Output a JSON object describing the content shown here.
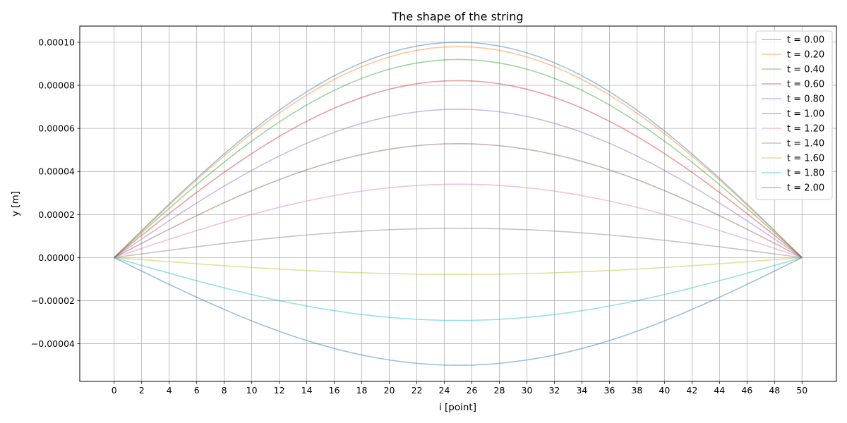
{
  "chart_data": {
    "type": "line",
    "title": "The shape of the string",
    "xlabel": "i [point]",
    "ylabel": "y [m]",
    "xlim": [
      -2.5,
      52.5
    ],
    "ylim": [
      -5.75e-05,
      0.0001075
    ],
    "xticks": [
      0,
      2,
      4,
      6,
      8,
      10,
      12,
      14,
      16,
      18,
      20,
      22,
      24,
      26,
      28,
      30,
      32,
      34,
      36,
      38,
      40,
      42,
      44,
      46,
      48,
      50
    ],
    "xtick_labels": [
      "0",
      "2",
      "4",
      "6",
      "8",
      "10",
      "12",
      "14",
      "16",
      "18",
      "20",
      "22",
      "24",
      "26",
      "28",
      "30",
      "32",
      "34",
      "36",
      "38",
      "40",
      "42",
      "44",
      "46",
      "48",
      "50"
    ],
    "yticks": [
      -4e-05,
      -2e-05,
      0,
      2e-05,
      4e-05,
      6e-05,
      8e-05,
      0.0001
    ],
    "ytick_labels": [
      "−0.00004",
      "−0.00002",
      "0.00000",
      "0.00002",
      "0.00004",
      "0.00006",
      "0.00008",
      "0.00010"
    ],
    "grid": true,
    "legend_position": "top-right",
    "shape": "sine half-wave over i = 0..50, peak at i = 25",
    "series": [
      {
        "name": "t = 0.00",
        "amplitude": 0.0001,
        "color": "#1f77b4"
      },
      {
        "name": "t = 0.20",
        "amplitude": 9.8e-05,
        "color": "#ff7f0e"
      },
      {
        "name": "t = 0.40",
        "amplitude": 9.2e-05,
        "color": "#2ca02c"
      },
      {
        "name": "t = 0.60",
        "amplitude": 8.22e-05,
        "color": "#d62728"
      },
      {
        "name": "t = 0.80",
        "amplitude": 6.89e-05,
        "color": "#9467bd"
      },
      {
        "name": "t = 1.00",
        "amplitude": 5.29e-05,
        "color": "#8c564b"
      },
      {
        "name": "t = 1.20",
        "amplitude": 3.41e-05,
        "color": "#e377c2"
      },
      {
        "name": "t = 1.40",
        "amplitude": 1.36e-05,
        "color": "#7f7f7f"
      },
      {
        "name": "t = 1.60",
        "amplitude": -7.8e-06,
        "color": "#bcbd22"
      },
      {
        "name": "t = 1.80",
        "amplitude": -2.92e-05,
        "color": "#17becf"
      },
      {
        "name": "t = 2.00",
        "amplitude": -5e-05,
        "color": "#1f77b4"
      }
    ]
  }
}
